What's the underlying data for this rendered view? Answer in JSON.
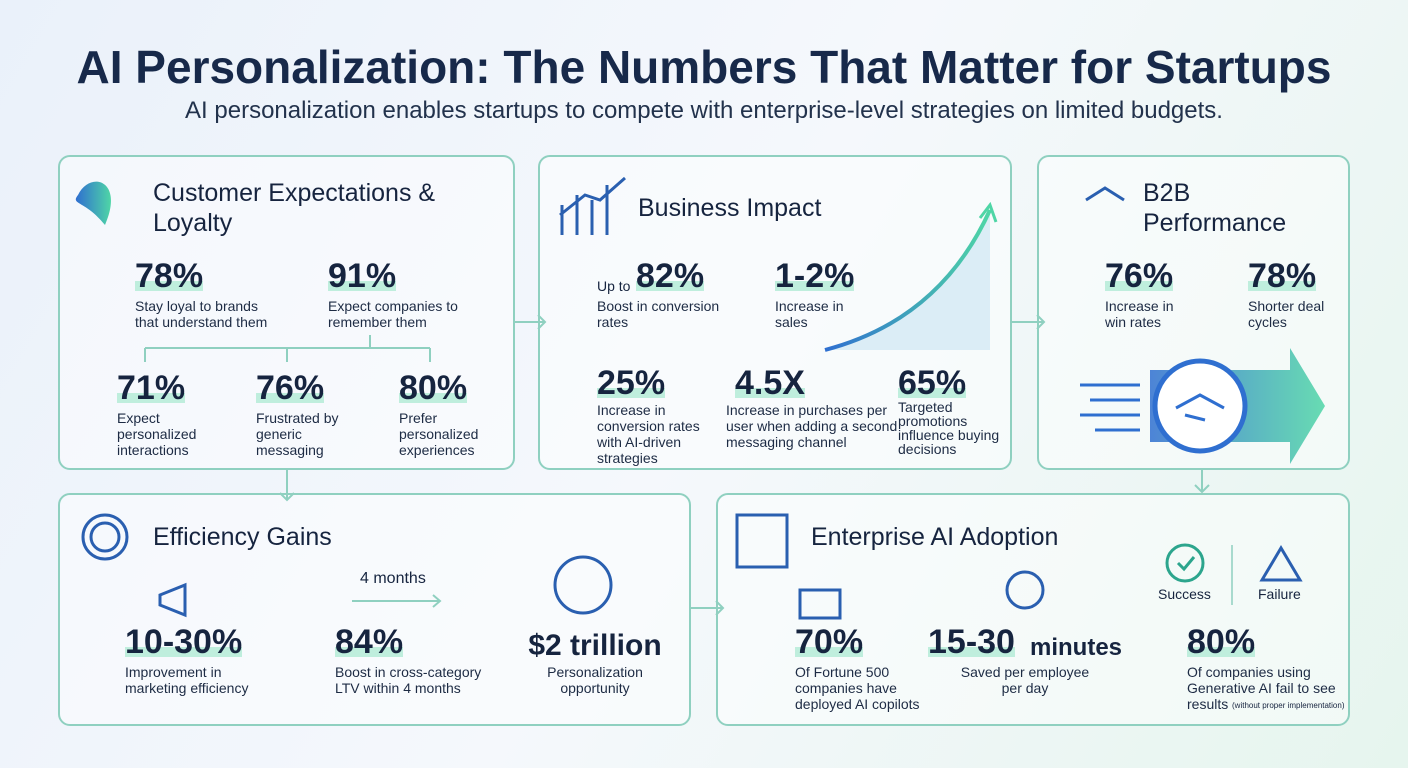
{
  "header": {
    "title": "AI Personalization: The Numbers That Matter for Startups",
    "subtitle": "AI personalization enables startups to compete with enterprise-level strategies on limited budgets."
  },
  "panels": [
    {
      "title": "Customer Expectations & Loyalty",
      "stats": [
        {
          "value": "78%",
          "text": "Stay loyal to brands that understand them"
        },
        {
          "value": "91%",
          "text": "Expect companies to remember them"
        },
        {
          "value": "71%",
          "text": "Expect personalized interactions"
        },
        {
          "value": "76%",
          "text": "Frustrated by generic messaging"
        },
        {
          "value": "80%",
          "text": "Prefer personalized experiences"
        }
      ]
    },
    {
      "title": "Business Impact",
      "stats": [
        {
          "prefix": "Up to",
          "value": "82%",
          "text": "Boost in conversion rates"
        },
        {
          "value": "1-2%",
          "text": "Increase in sales"
        },
        {
          "value": "25%",
          "text": "Increase in conversion rates with AI-driven strategies"
        },
        {
          "value": "4.5X",
          "text": "Increase in purchases per user when adding a second messaging channel"
        },
        {
          "value": "65%",
          "text": "Targeted promotions influence buying decisions"
        }
      ]
    },
    {
      "title": "B2B Performance",
      "stats": [
        {
          "value": "76%",
          "text": "Increase in win rates"
        },
        {
          "value": "78%",
          "text": "Shorter deal cycles"
        }
      ]
    },
    {
      "title": "Efficiency Gains",
      "timeline": "4 months",
      "stats": [
        {
          "value": "10-30%",
          "text": "Improvement in marketing efficiency"
        },
        {
          "value": "84%",
          "text": "Boost in cross-category LTV within 4 months"
        },
        {
          "value": "$2 trillion",
          "text": "Personalization opportunity"
        }
      ]
    },
    {
      "title": "Enterprise AI Adoption",
      "legend": [
        "Success",
        "Failure"
      ],
      "stats": [
        {
          "value": "70%",
          "text": "Of Fortune 500 companies have deployed AI copilots"
        },
        {
          "value": "15-30",
          "unit": "minutes",
          "text": "Saved per employee per day"
        },
        {
          "value": "80%",
          "text": "Of companies using Generative AI fail to see results",
          "note": "(without proper implementation)"
        }
      ]
    }
  ]
}
